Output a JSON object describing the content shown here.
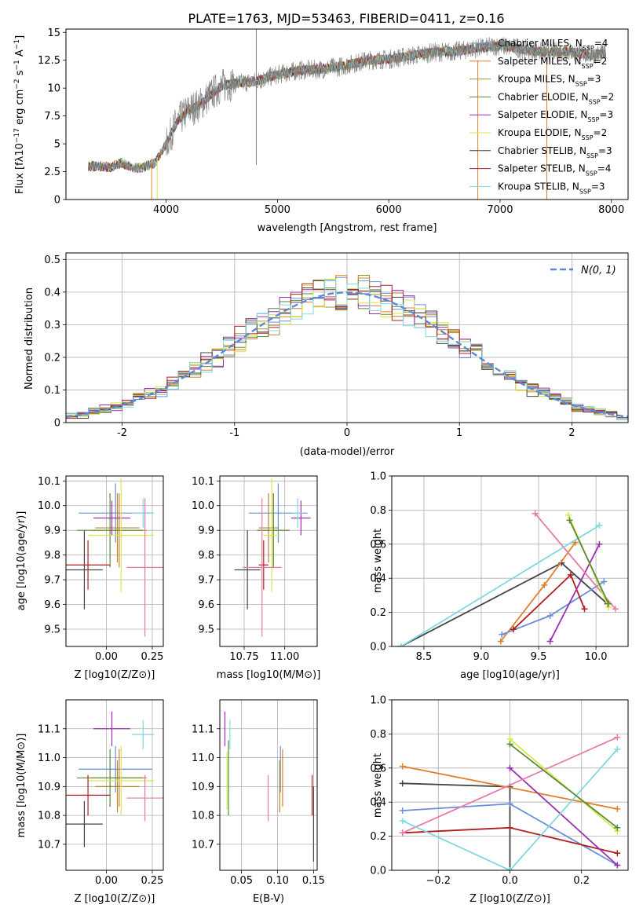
{
  "figure": {
    "title": "PLATE=1763, MJD=53463, FIBERID=0411, z=0.16"
  },
  "chart_data": [
    {
      "id": "spectrum",
      "type": "line",
      "xlabel": "wavelength [Angstrom, rest frame]",
      "ylabel": "Flux [f_λ 10^-17 erg cm^-2 s^-1 A^-1]",
      "xlim": [
        3100,
        8150
      ],
      "ylim": [
        0,
        15.3
      ],
      "xticks": [
        4000,
        5000,
        6000,
        7000,
        8000
      ],
      "yticks": [
        0.0,
        2.5,
        5.0,
        7.5,
        10.0,
        12.5,
        15.0
      ],
      "grid": false,
      "legend_position": "right",
      "data_series": {
        "name": "data",
        "color": "#808080",
        "x": [
          3300,
          3400,
          3500,
          3600,
          3700,
          3800,
          3900,
          4000,
          4100,
          4200,
          4300,
          4400,
          4500,
          4600,
          4800,
          5000,
          5200,
          5400,
          5600,
          5800,
          6000,
          6200,
          6400,
          6600,
          6800,
          7000,
          7200,
          7400,
          7600,
          7800,
          7950
        ],
        "y": [
          3.0,
          3.0,
          2.9,
          3.3,
          2.8,
          2.9,
          3.3,
          5.0,
          7.0,
          8.0,
          8.5,
          9.4,
          10.2,
          10.4,
          10.6,
          11.2,
          11.6,
          11.7,
          12.0,
          12.5,
          12.6,
          12.9,
          13.2,
          13.3,
          13.6,
          13.8,
          13.5,
          13.2,
          13.3,
          13.0,
          13.1
        ]
      },
      "series": [
        {
          "name": "Chabrier MILES, N_SSP=4",
          "color": "#6a8fd8"
        },
        {
          "name": "Salpeter MILES, N_SSP=2",
          "color": "#e0802a"
        },
        {
          "name": "Kroupa MILES, N_SSP=3",
          "color": "#b08a2a"
        },
        {
          "name": "Chabrier ELODIE, N_SSP=2",
          "color": "#5a8a3a"
        },
        {
          "name": "Salpeter ELODIE, N_SSP=3",
          "color": "#9b2fb0"
        },
        {
          "name": "Kroupa ELODIE, N_SSP=2",
          "color": "#d6e84a"
        },
        {
          "name": "Chabrier STELIB, N_SSP=3",
          "color": "#444444"
        },
        {
          "name": "Salpeter STELIB, N_SSP=4",
          "color": "#b01f1f"
        },
        {
          "name": "Kroupa STELIB, N_SSP=3",
          "color": "#7ed9e0"
        }
      ]
    },
    {
      "id": "residuals",
      "type": "histogram",
      "xlabel": "(data-model)/error",
      "ylabel": "Normed distribution",
      "xlim": [
        -2.5,
        2.5
      ],
      "ylim": [
        0,
        0.52
      ],
      "xticks": [
        -2,
        -1,
        0,
        1,
        2
      ],
      "yticks": [
        0.0,
        0.1,
        0.2,
        0.3,
        0.4,
        0.5
      ],
      "grid": true,
      "legend_position": "top-right",
      "legend": [
        "N(0, 1)"
      ],
      "normal_color": "#5a8ad6",
      "bin_width": 0.1,
      "series_colors": [
        "#6a8fd8",
        "#e0802a",
        "#b08a2a",
        "#5a8a3a",
        "#9b2fb0",
        "#d6e84a",
        "#444444",
        "#b01f1f",
        "#7ed9e0"
      ]
    },
    {
      "id": "age-z",
      "type": "errorbar",
      "xlabel": "Z [log10(Z/Z⊙)]",
      "ylabel": "age [log10(age/yr)]",
      "xlim": [
        -0.22,
        0.31
      ],
      "ylim": [
        9.43,
        10.12
      ],
      "xticks": [
        "0.00",
        "0.25"
      ],
      "yticks": [
        "9.5",
        "9.6",
        "9.7",
        "9.8",
        "9.9",
        "10.0",
        "10.1"
      ],
      "grid": true,
      "points": [
        {
          "color": "#6a8fd8",
          "x": 0.05,
          "xerr": 0.2,
          "y": 9.97,
          "yerr": 0.12
        },
        {
          "color": "#e0802a",
          "x": 0.07,
          "xerr": 0.15,
          "y": 9.9,
          "yerr": 0.15
        },
        {
          "color": "#b08a2a",
          "x": 0.06,
          "xerr": 0.12,
          "y": 9.91,
          "yerr": 0.14
        },
        {
          "color": "#5a8a3a",
          "x": 0.02,
          "xerr": 0.18,
          "y": 9.9,
          "yerr": 0.15
        },
        {
          "color": "#9b2fb0",
          "x": 0.03,
          "xerr": 0.1,
          "y": 9.95,
          "yerr": 0.07
        },
        {
          "color": "#d6e84a",
          "x": 0.08,
          "xerr": 0.18,
          "y": 9.88,
          "yerr": 0.23
        },
        {
          "color": "#444444",
          "x": -0.12,
          "xerr": 0.1,
          "y": 9.74,
          "yerr": 0.16
        },
        {
          "color": "#b01f1f",
          "x": -0.1,
          "xerr": 0.12,
          "y": 9.76,
          "yerr": 0.1
        },
        {
          "color": "#7ed9e0",
          "x": 0.2,
          "xerr": 0.06,
          "y": 9.97,
          "yerr": 0.06
        },
        {
          "color": "#e87aa8",
          "x": 0.21,
          "xerr": 0.1,
          "y": 9.75,
          "yerr": 0.28
        }
      ]
    },
    {
      "id": "age-mass",
      "type": "errorbar",
      "xlabel": "mass [log10(M/M⊙)]",
      "ylabel": "",
      "xlim": [
        10.6,
        11.2
      ],
      "ylim": [
        9.43,
        10.12
      ],
      "xticks": [
        "10.75",
        "11.00"
      ],
      "yticks": [
        "9.5",
        "9.6",
        "9.7",
        "9.8",
        "9.9",
        "10.0",
        "10.1"
      ],
      "grid": true,
      "points": [
        {
          "color": "#6a8fd8",
          "x": 10.96,
          "xerr": 0.18,
          "y": 9.97,
          "yerr": 0.12
        },
        {
          "color": "#e0802a",
          "x": 10.93,
          "xerr": 0.1,
          "y": 9.9,
          "yerr": 0.15
        },
        {
          "color": "#b08a2a",
          "x": 10.9,
          "xerr": 0.06,
          "y": 9.91,
          "yerr": 0.14
        },
        {
          "color": "#5a8a3a",
          "x": 10.93,
          "xerr": 0.1,
          "y": 9.9,
          "yerr": 0.15
        },
        {
          "color": "#9b2fb0",
          "x": 11.1,
          "xerr": 0.06,
          "y": 9.95,
          "yerr": 0.07
        },
        {
          "color": "#d6e84a",
          "x": 10.92,
          "xerr": 0.05,
          "y": 9.88,
          "yerr": 0.23
        },
        {
          "color": "#444444",
          "x": 10.77,
          "xerr": 0.08,
          "y": 9.74,
          "yerr": 0.16
        },
        {
          "color": "#b01f1f",
          "x": 10.87,
          "xerr": 0.03,
          "y": 9.76,
          "yerr": 0.1
        },
        {
          "color": "#7ed9e0",
          "x": 11.08,
          "xerr": 0.03,
          "y": 9.97,
          "yerr": 0.06
        },
        {
          "color": "#e87aa8",
          "x": 10.86,
          "xerr": 0.12,
          "y": 9.75,
          "yerr": 0.28
        }
      ]
    },
    {
      "id": "mass-z",
      "type": "errorbar",
      "xlabel": "Z [log10(Z/Z⊙)]",
      "ylabel": "mass [log10(M/M⊙)]",
      "xlim": [
        -0.22,
        0.31
      ],
      "ylim": [
        10.61,
        11.2
      ],
      "xticks": [
        "0.00",
        "0.25"
      ],
      "yticks": [
        "10.7",
        "10.8",
        "10.9",
        "11.0",
        "11.1"
      ],
      "grid": true,
      "points": [
        {
          "color": "#6a8fd8",
          "x": 0.05,
          "xerr": 0.2,
          "y": 10.96,
          "yerr": 0.08
        },
        {
          "color": "#e0802a",
          "x": 0.07,
          "xerr": 0.15,
          "y": 10.93,
          "yerr": 0.1
        },
        {
          "color": "#b08a2a",
          "x": 0.06,
          "xerr": 0.12,
          "y": 10.9,
          "yerr": 0.09
        },
        {
          "color": "#5a8a3a",
          "x": 0.02,
          "xerr": 0.18,
          "y": 10.93,
          "yerr": 0.1
        },
        {
          "color": "#9b2fb0",
          "x": 0.03,
          "xerr": 0.1,
          "y": 11.1,
          "yerr": 0.06
        },
        {
          "color": "#d6e84a",
          "x": 0.08,
          "xerr": 0.18,
          "y": 10.92,
          "yerr": 0.12
        },
        {
          "color": "#444444",
          "x": -0.12,
          "xerr": 0.1,
          "y": 10.77,
          "yerr": 0.08
        },
        {
          "color": "#b01f1f",
          "x": -0.1,
          "xerr": 0.12,
          "y": 10.87,
          "yerr": 0.07
        },
        {
          "color": "#7ed9e0",
          "x": 0.2,
          "xerr": 0.06,
          "y": 11.08,
          "yerr": 0.05
        },
        {
          "color": "#e87aa8",
          "x": 0.21,
          "xerr": 0.1,
          "y": 10.86,
          "yerr": 0.08
        }
      ]
    },
    {
      "id": "mass-ebv",
      "type": "errorbar",
      "xlabel": "E(B-V)",
      "ylabel": "",
      "xlim": [
        0.02,
        0.155
      ],
      "ylim": [
        10.61,
        11.2
      ],
      "xticks": [
        "0.05",
        "0.10",
        "0.15"
      ],
      "yticks": [
        "10.7",
        "10.8",
        "10.9",
        "11.0",
        "11.1"
      ],
      "grid": true,
      "points": [
        {
          "color": "#6a8fd8",
          "x": 0.104,
          "xerr": 0,
          "y": 10.96,
          "yerr": 0.08
        },
        {
          "color": "#e0802a",
          "x": 0.107,
          "xerr": 0,
          "y": 10.93,
          "yerr": 0.1
        },
        {
          "color": "#b08a2a",
          "x": 0.103,
          "xerr": 0,
          "y": 10.9,
          "yerr": 0.09
        },
        {
          "color": "#5a8a3a",
          "x": 0.032,
          "xerr": 0,
          "y": 10.93,
          "yerr": 0.13
        },
        {
          "color": "#9b2fb0",
          "x": 0.027,
          "xerr": 0,
          "y": 11.1,
          "yerr": 0.06
        },
        {
          "color": "#d6e84a",
          "x": 0.03,
          "xerr": 0,
          "y": 10.92,
          "yerr": 0.1
        },
        {
          "color": "#444444",
          "x": 0.15,
          "xerr": 0,
          "y": 10.77,
          "yerr": 0.13
        },
        {
          "color": "#b01f1f",
          "x": 0.148,
          "xerr": 0,
          "y": 10.87,
          "yerr": 0.07
        },
        {
          "color": "#7ed9e0",
          "x": 0.034,
          "xerr": 0,
          "y": 11.08,
          "yerr": 0.05
        },
        {
          "color": "#e87aa8",
          "x": 0.087,
          "xerr": 0,
          "y": 10.86,
          "yerr": 0.08
        }
      ]
    },
    {
      "id": "weight-age",
      "type": "line",
      "xlabel": "age [log10(age/yr)]",
      "ylabel": "mass weight",
      "xlim": [
        8.22,
        10.28
      ],
      "ylim": [
        0,
        1
      ],
      "xticks": [
        "8.5",
        "9.0",
        "9.5",
        "10.0"
      ],
      "yticks": [
        "0.0",
        "0.2",
        "0.4",
        "0.6",
        "0.8",
        "1.0"
      ],
      "grid": true,
      "series": [
        {
          "color": "#444444",
          "x": [
            8.3,
            9.7,
            10.1
          ],
          "y": [
            0.0,
            0.49,
            0.25
          ]
        },
        {
          "color": "#e0802a",
          "x": [
            9.17,
            9.55,
            9.82
          ],
          "y": [
            0.03,
            0.36,
            0.61
          ]
        },
        {
          "color": "#6a8fd8",
          "x": [
            9.18,
            9.6,
            10.07
          ],
          "y": [
            0.07,
            0.18,
            0.38
          ]
        },
        {
          "color": "#b01f1f",
          "x": [
            9.28,
            9.78,
            9.9
          ],
          "y": [
            0.1,
            0.42,
            0.22
          ]
        },
        {
          "color": "#9b2fb0",
          "x": [
            9.6,
            10.03
          ],
          "y": [
            0.03,
            0.6
          ]
        },
        {
          "color": "#e87aa8",
          "x": [
            9.47,
            10.17
          ],
          "y": [
            0.78,
            0.22
          ]
        },
        {
          "color": "#7ed9e0",
          "x": [
            8.3,
            10.03
          ],
          "y": [
            0.0,
            0.71
          ]
        },
        {
          "color": "#d6e84a",
          "x": [
            9.76,
            10.11
          ],
          "y": [
            0.77,
            0.23
          ]
        },
        {
          "color": "#5a8a3a",
          "x": [
            9.77,
            10.11
          ],
          "y": [
            0.74,
            0.25
          ]
        }
      ]
    },
    {
      "id": "weight-z",
      "type": "line",
      "xlabel": "Z [log10(Z/Z⊙)]",
      "ylabel": "mass weight",
      "xlim": [
        -0.33,
        0.33
      ],
      "ylim": [
        0,
        1
      ],
      "xticks": [
        "−0.2",
        "0.0",
        "0.2"
      ],
      "yticks": [
        "0.0",
        "0.2",
        "0.4",
        "0.6",
        "0.8",
        "1.0"
      ],
      "grid": true,
      "series": [
        {
          "color": "#444444",
          "x": [
            -0.3,
            0.0,
            0.0
          ],
          "y": [
            0.51,
            0.49,
            0.0
          ]
        },
        {
          "color": "#e0802a",
          "x": [
            -0.3,
            0.3
          ],
          "y": [
            0.61,
            0.36
          ]
        },
        {
          "color": "#6a8fd8",
          "x": [
            -0.3,
            0.0,
            0.3
          ],
          "y": [
            0.35,
            0.39,
            0.03
          ]
        },
        {
          "color": "#b01f1f",
          "x": [
            -0.3,
            0.0,
            0.3
          ],
          "y": [
            0.22,
            0.25,
            0.1
          ]
        },
        {
          "color": "#9b2fb0",
          "x": [
            0.0,
            0.3
          ],
          "y": [
            0.6,
            0.03
          ]
        },
        {
          "color": "#e87aa8",
          "x": [
            -0.3,
            0.3
          ],
          "y": [
            0.22,
            0.78
          ]
        },
        {
          "color": "#7ed9e0",
          "x": [
            -0.3,
            0.0,
            0.3
          ],
          "y": [
            0.29,
            0.0,
            0.71
          ]
        },
        {
          "color": "#d6e84a",
          "x": [
            0.0,
            0.3
          ],
          "y": [
            0.77,
            0.23
          ]
        },
        {
          "color": "#5a8a3a",
          "x": [
            0.0,
            0.3
          ],
          "y": [
            0.74,
            0.25
          ]
        }
      ]
    }
  ]
}
